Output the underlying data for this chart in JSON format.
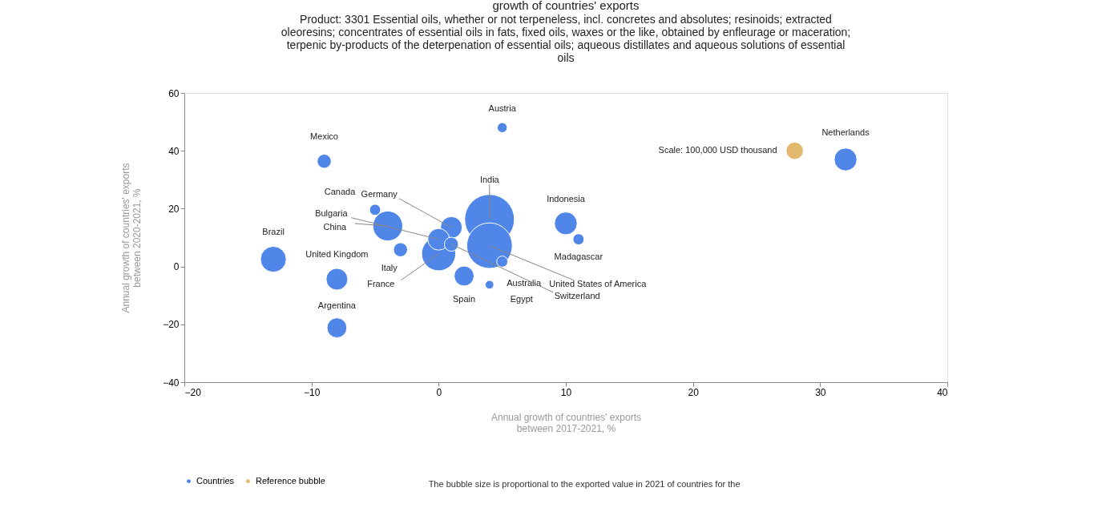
{
  "chart_data": {
    "type": "bubble",
    "title": "growth of countries' exports",
    "subtitle": [
      "Product: 3301 Essential oils, whether or not terpeneless, incl. concretes and absolutes; resinoids; extracted",
      "oleoresins; concentrates of essential oils in fats, fixed oils, waxes or the like, obtained by enfleurage or maceration;",
      "terpenic by-products of the deterpenation of essential oils; aqueous distillates and aqueous solutions of essential",
      "oils"
    ],
    "xlabel": [
      "Annual growth of countries' exports",
      "between 2017-2021, %"
    ],
    "ylabel": [
      "Annual growth of countries' exports",
      "between 2020-2021, %"
    ],
    "xlim": [
      -20,
      40
    ],
    "ylim": [
      -40,
      60
    ],
    "xticks": [
      -20,
      -10,
      0,
      10,
      20,
      30,
      40
    ],
    "yticks": [
      -40,
      -20,
      0,
      20,
      40,
      60
    ],
    "legend": "bottom",
    "series": [
      {
        "name": "Countries",
        "color": "#4f86e8",
        "x": [
          5,
          -9,
          32,
          -5,
          1,
          0,
          -4,
          4,
          10,
          11,
          -13,
          -8,
          -3,
          0,
          2,
          5,
          4,
          4,
          1,
          -8
        ],
        "values": [
          48,
          36.4,
          37,
          19.6,
          13.5,
          9.4,
          14,
          16.3,
          14.9,
          9.4,
          2.5,
          -4.4,
          5.8,
          4.4,
          -3.3,
          1.7,
          -6.3,
          7.2,
          7.7,
          -21.2
        ],
        "sizes": [
          0.04,
          0.08,
          0.21,
          0.05,
          0.19,
          0.19,
          0.36,
          1,
          0.21,
          0.05,
          0.27,
          0.19,
          0.08,
          0.47,
          0.16,
          0.05,
          0.03,
          0.84,
          0.08,
          0.16
        ]
      },
      {
        "name": "Reference bubble",
        "color": "#e2b86e",
        "x": [
          28
        ],
        "values": [
          40
        ],
        "sizes": [
          0.12
        ]
      }
    ],
    "annotations": [
      {
        "text": "Austria",
        "x": 5,
        "y": 48
      },
      {
        "text": "Mexico",
        "x": -9,
        "y": 36.4
      },
      {
        "text": "Netherlands",
        "x": 32,
        "y": 37
      },
      {
        "text": "Canada",
        "x": -5,
        "y": 19.6
      },
      {
        "text": "Germany",
        "x": 1,
        "y": 13.5
      },
      {
        "text": "Bulgaria",
        "x": 0,
        "y": 9.4
      },
      {
        "text": "China",
        "x": -4,
        "y": 14
      },
      {
        "text": "India",
        "x": 4,
        "y": 16.3
      },
      {
        "text": "Indonesia",
        "x": 10,
        "y": 14.9
      },
      {
        "text": "Madagascar",
        "x": 11,
        "y": 9.4
      },
      {
        "text": "Brazil",
        "x": -13,
        "y": 2.5
      },
      {
        "text": "United Kingdom",
        "x": -8,
        "y": -4.4
      },
      {
        "text": "Italy",
        "x": -3,
        "y": 5.8
      },
      {
        "text": "France",
        "x": 0,
        "y": 4.4
      },
      {
        "text": "Spain",
        "x": 2,
        "y": -3.3
      },
      {
        "text": "Australia",
        "x": 5,
        "y": 1.7
      },
      {
        "text": "Egypt",
        "x": 4,
        "y": -6.3
      },
      {
        "text": "United States of America",
        "x": 4,
        "y": 7.2
      },
      {
        "text": "Switzerland",
        "x": 1,
        "y": 7.7
      },
      {
        "text": "Argentina",
        "x": -8,
        "y": -21.2
      },
      {
        "text": "Scale: 100,000 USD thousand",
        "x": 28,
        "y": 40
      },
      "The bubble size is proportional to the exported value in 2021 of countries for the"
    ]
  }
}
